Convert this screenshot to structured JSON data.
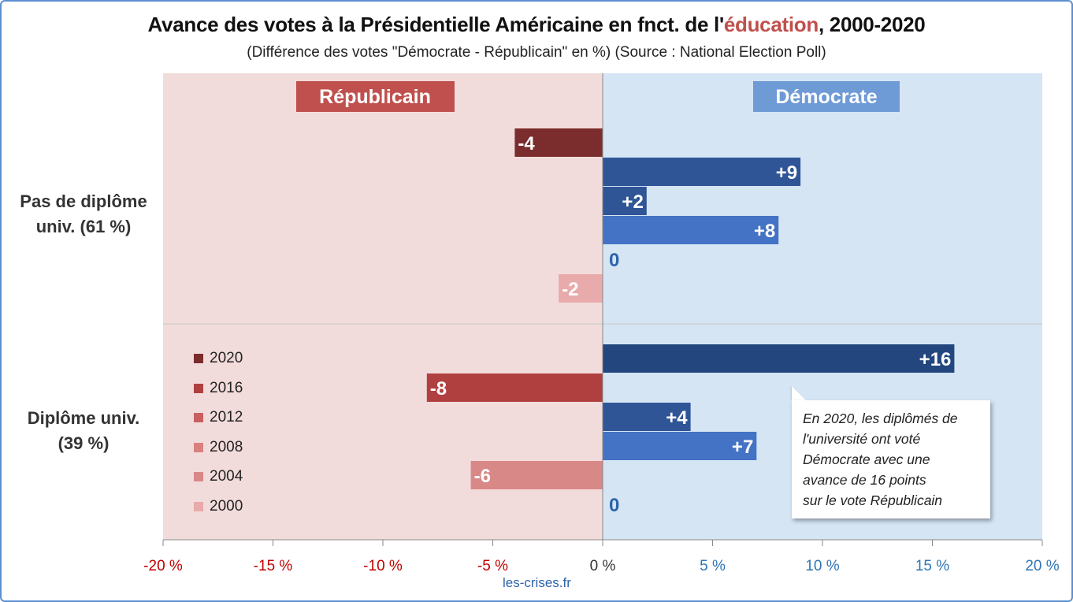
{
  "title_part1": "Avance des votes à la Présidentielle Américaine en fnct. de l'",
  "title_highlight": "éducation",
  "title_part2": ", 2000-2020",
  "subtitle": "(Différence des votes \"Démocrate - Républicain\" en %) (Source : National Election Poll)",
  "source": "les-crises.fr",
  "chart_data": {
    "type": "bar",
    "orientation": "horizontal",
    "xlim": [
      -20,
      20
    ],
    "x_ticks": [
      -20,
      -15,
      -10,
      -5,
      0,
      5,
      10,
      15,
      20
    ],
    "x_tick_labels": [
      "-20 %",
      "-15 %",
      "-10 %",
      "-5 %",
      "0 %",
      "5 %",
      "10 %",
      "15 %",
      "20 %"
    ],
    "region_labels": {
      "left": "Républicain",
      "right": "Démocrate"
    },
    "categories": [
      "Pas de diplôme univ. (61 %)",
      "Diplôme univ. (39 %)"
    ],
    "category_lines": [
      [
        "Pas de diplôme",
        "univ. (61 %)"
      ],
      [
        "Diplôme univ.",
        "(39 %)"
      ]
    ],
    "series": [
      {
        "name": "2020",
        "values": [
          -4,
          16
        ],
        "labels": [
          "-4",
          "+16"
        ]
      },
      {
        "name": "2016",
        "values": [
          9,
          -8
        ],
        "labels": [
          "+9",
          "-8"
        ]
      },
      {
        "name": "2012",
        "values": [
          2,
          4
        ],
        "labels": [
          "+2",
          "+4"
        ]
      },
      {
        "name": "2008",
        "values": [
          8,
          7
        ],
        "labels": [
          "+8",
          "+7"
        ]
      },
      {
        "name": "2004",
        "values": [
          0,
          -6
        ],
        "labels": [
          "0",
          "-6"
        ]
      },
      {
        "name": "2000",
        "values": [
          -2,
          0
        ],
        "labels": [
          "-2",
          "0"
        ]
      }
    ],
    "legend_placement": "bottom-left",
    "grid": false
  },
  "colors": {
    "republican_bg": "#f2dcdb",
    "democrat_bg": "#d5e5f4",
    "republican_badge": "#c0504d",
    "democrat_badge": "#6e9ad6",
    "rep_bars": [
      "#7b2c2c",
      "#b04040",
      "#c96060",
      "#d98080",
      "#d98888",
      "#e8aaaa"
    ],
    "legend_swatches": [
      "#7b2c2c",
      "#b04040",
      "#c96060",
      "#d98080",
      "#d98888",
      "#e8aaaa"
    ],
    "dem_bars": [
      "#23467f",
      "#2f5597",
      "#2f5597",
      "#4472c4",
      "#4472c4",
      "#4472c4"
    ],
    "neg_tick": "#c00000",
    "pos_tick": "#2e75b6"
  },
  "annotation": {
    "lines": [
      "En 2020, les diplômés de",
      "l'université ont voté",
      "Démocrate avec une",
      "avance de 16 points",
      "sur le vote Républicain"
    ]
  }
}
